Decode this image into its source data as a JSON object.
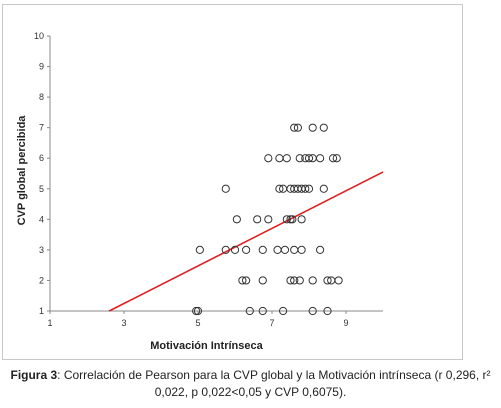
{
  "chart_data": {
    "type": "scatter",
    "xlabel": "Motivación Intrínseca",
    "ylabel": "CVP global percibida",
    "xlim": [
      1,
      10
    ],
    "ylim": [
      1,
      10
    ],
    "x_ticks": [
      1,
      3,
      5,
      7,
      9
    ],
    "y_ticks": [
      1,
      2,
      3,
      4,
      5,
      6,
      7,
      8,
      9,
      10
    ],
    "grid": false,
    "marker": "hollow-circle",
    "points": [
      {
        "x": 4.95,
        "y": 1
      },
      {
        "x": 5.0,
        "y": 1
      },
      {
        "x": 6.4,
        "y": 1
      },
      {
        "x": 6.75,
        "y": 1
      },
      {
        "x": 7.3,
        "y": 1
      },
      {
        "x": 8.1,
        "y": 1
      },
      {
        "x": 8.5,
        "y": 1
      },
      {
        "x": 6.2,
        "y": 2
      },
      {
        "x": 6.3,
        "y": 2
      },
      {
        "x": 6.75,
        "y": 2
      },
      {
        "x": 7.5,
        "y": 2
      },
      {
        "x": 7.6,
        "y": 2
      },
      {
        "x": 7.75,
        "y": 2
      },
      {
        "x": 8.1,
        "y": 2
      },
      {
        "x": 8.5,
        "y": 2
      },
      {
        "x": 8.6,
        "y": 2
      },
      {
        "x": 8.8,
        "y": 2
      },
      {
        "x": 5.05,
        "y": 3
      },
      {
        "x": 5.75,
        "y": 3
      },
      {
        "x": 6.0,
        "y": 3
      },
      {
        "x": 6.3,
        "y": 3
      },
      {
        "x": 6.75,
        "y": 3
      },
      {
        "x": 7.15,
        "y": 3
      },
      {
        "x": 7.35,
        "y": 3
      },
      {
        "x": 7.6,
        "y": 3
      },
      {
        "x": 7.8,
        "y": 3
      },
      {
        "x": 8.3,
        "y": 3
      },
      {
        "x": 6.05,
        "y": 4
      },
      {
        "x": 6.6,
        "y": 4
      },
      {
        "x": 6.9,
        "y": 4
      },
      {
        "x": 7.4,
        "y": 4
      },
      {
        "x": 7.5,
        "y": 4
      },
      {
        "x": 7.55,
        "y": 4
      },
      {
        "x": 7.8,
        "y": 4
      },
      {
        "x": 5.75,
        "y": 5
      },
      {
        "x": 7.2,
        "y": 5
      },
      {
        "x": 7.3,
        "y": 5
      },
      {
        "x": 7.5,
        "y": 5
      },
      {
        "x": 7.6,
        "y": 5
      },
      {
        "x": 7.7,
        "y": 5
      },
      {
        "x": 7.8,
        "y": 5
      },
      {
        "x": 7.9,
        "y": 5
      },
      {
        "x": 8.0,
        "y": 5
      },
      {
        "x": 8.4,
        "y": 5
      },
      {
        "x": 6.9,
        "y": 6
      },
      {
        "x": 7.2,
        "y": 6
      },
      {
        "x": 7.4,
        "y": 6
      },
      {
        "x": 7.75,
        "y": 6
      },
      {
        "x": 7.9,
        "y": 6
      },
      {
        "x": 8.0,
        "y": 6
      },
      {
        "x": 8.1,
        "y": 6
      },
      {
        "x": 8.3,
        "y": 6
      },
      {
        "x": 8.65,
        "y": 6
      },
      {
        "x": 8.75,
        "y": 6
      },
      {
        "x": 7.6,
        "y": 7
      },
      {
        "x": 7.7,
        "y": 7
      },
      {
        "x": 8.1,
        "y": 7
      },
      {
        "x": 8.4,
        "y": 7
      }
    ],
    "trendline": {
      "x": [
        2.6,
        10
      ],
      "y": [
        1,
        5.55
      ],
      "color": "#e02020"
    }
  },
  "caption": {
    "label": "Figura 3",
    "text": ": Correlación de Pearson para la CVP global y la Motivación intrínseca (r 0,296, r² 0,022, p 0,022<0,05 y CVP 0,6075)."
  }
}
